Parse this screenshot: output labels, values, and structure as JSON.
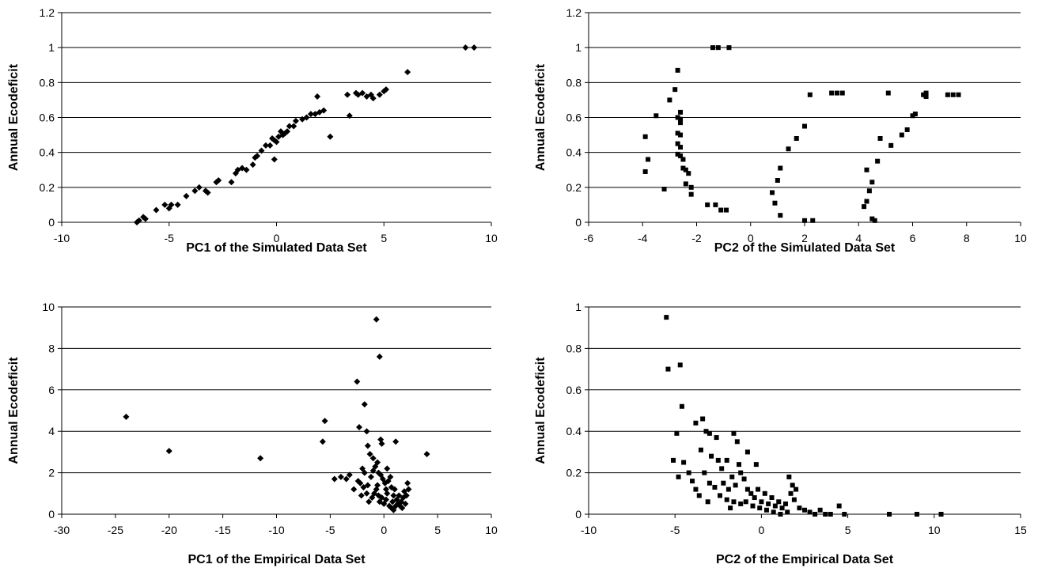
{
  "chart_data": [
    {
      "type": "scatter",
      "marker": "diamond",
      "xlabel": "PC1 of the Simulated Data Set",
      "ylabel": "Annual Ecodeficit",
      "xlim": [
        -10,
        10
      ],
      "ylim": [
        0,
        1.2
      ],
      "xticks": [
        -10,
        -5,
        0,
        5,
        10
      ],
      "yticks": [
        0,
        0.2,
        0.4,
        0.6,
        0.8,
        1,
        1.2
      ],
      "xtick_labels": [
        "-10",
        "-5",
        "0",
        "5",
        "10"
      ],
      "ytick_labels": [
        "0",
        "0.2",
        "0.4",
        "0.6",
        "0.8",
        "1",
        "1.2"
      ],
      "grid": "horizontal",
      "points": [
        [
          -6.5,
          0.0
        ],
        [
          -6.4,
          0.01
        ],
        [
          -6.2,
          0.03
        ],
        [
          -6.1,
          0.02
        ],
        [
          -5.6,
          0.07
        ],
        [
          -5.2,
          0.1
        ],
        [
          -5.0,
          0.08
        ],
        [
          -4.9,
          0.1
        ],
        [
          -4.6,
          0.1
        ],
        [
          -4.2,
          0.15
        ],
        [
          -3.8,
          0.18
        ],
        [
          -3.6,
          0.2
        ],
        [
          -3.3,
          0.18
        ],
        [
          -3.2,
          0.17
        ],
        [
          -2.8,
          0.23
        ],
        [
          -2.7,
          0.24
        ],
        [
          -2.1,
          0.23
        ],
        [
          -1.9,
          0.28
        ],
        [
          -1.8,
          0.3
        ],
        [
          -1.6,
          0.31
        ],
        [
          -1.4,
          0.3
        ],
        [
          -1.1,
          0.33
        ],
        [
          -1.0,
          0.37
        ],
        [
          -0.9,
          0.38
        ],
        [
          -0.7,
          0.41
        ],
        [
          -0.5,
          0.44
        ],
        [
          -0.3,
          0.44
        ],
        [
          -0.1,
          0.47
        ],
        [
          -0.2,
          0.48
        ],
        [
          0.0,
          0.46
        ],
        [
          0.1,
          0.49
        ],
        [
          0.3,
          0.5
        ],
        [
          0.5,
          0.52
        ],
        [
          0.6,
          0.55
        ],
        [
          0.8,
          0.55
        ],
        [
          0.9,
          0.58
        ],
        [
          1.2,
          0.59
        ],
        [
          1.4,
          0.6
        ],
        [
          1.6,
          0.62
        ],
        [
          1.8,
          0.62
        ],
        [
          2.0,
          0.63
        ],
        [
          2.2,
          0.64
        ],
        [
          0.2,
          0.52
        ],
        [
          0.4,
          0.51
        ],
        [
          -0.1,
          0.36
        ],
        [
          1.9,
          0.72
        ],
        [
          2.5,
          0.49
        ],
        [
          3.3,
          0.73
        ],
        [
          3.4,
          0.61
        ],
        [
          3.7,
          0.74
        ],
        [
          3.8,
          0.73
        ],
        [
          4.0,
          0.74
        ],
        [
          4.2,
          0.72
        ],
        [
          4.4,
          0.73
        ],
        [
          4.5,
          0.71
        ],
        [
          4.8,
          0.73
        ],
        [
          5.0,
          0.75
        ],
        [
          5.1,
          0.76
        ],
        [
          6.1,
          0.86
        ],
        [
          8.8,
          1.0
        ],
        [
          9.2,
          1.0
        ]
      ]
    },
    {
      "type": "scatter",
      "marker": "square",
      "xlabel": "PC2 of the Simulated Data Set",
      "ylabel": "Annual Ecodeficit",
      "xlim": [
        -6,
        10
      ],
      "ylim": [
        0,
        1.2
      ],
      "xticks": [
        -6,
        -4,
        -2,
        0,
        2,
        4,
        6,
        8,
        10
      ],
      "yticks": [
        0,
        0.2,
        0.4,
        0.6,
        0.8,
        1,
        1.2
      ],
      "xtick_labels": [
        "-6",
        "-4",
        "-2",
        "0",
        "2",
        "4",
        "6",
        "8",
        "10"
      ],
      "ytick_labels": [
        "0",
        "0.2",
        "0.4",
        "0.6",
        "0.8",
        "1",
        "1.2"
      ],
      "grid": "horizontal",
      "points": [
        [
          -3.9,
          0.49
        ],
        [
          -3.8,
          0.36
        ],
        [
          -3.9,
          0.29
        ],
        [
          -3.5,
          0.61
        ],
        [
          -3.2,
          0.19
        ],
        [
          -3.0,
          0.7
        ],
        [
          -2.8,
          0.76
        ],
        [
          -2.7,
          0.87
        ],
        [
          -2.7,
          0.6
        ],
        [
          -2.6,
          0.63
        ],
        [
          -2.6,
          0.57
        ],
        [
          -2.7,
          0.51
        ],
        [
          -2.6,
          0.5
        ],
        [
          -2.7,
          0.45
        ],
        [
          -2.6,
          0.43
        ],
        [
          -2.6,
          0.38
        ],
        [
          -2.5,
          0.36
        ],
        [
          -2.7,
          0.39
        ],
        [
          -2.5,
          0.31
        ],
        [
          -2.4,
          0.3
        ],
        [
          -2.3,
          0.28
        ],
        [
          -2.2,
          0.2
        ],
        [
          -2.2,
          0.16
        ],
        [
          -2.6,
          0.59
        ],
        [
          -2.4,
          0.22
        ],
        [
          -1.6,
          0.1
        ],
        [
          -1.3,
          0.1
        ],
        [
          -1.1,
          0.07
        ],
        [
          -0.9,
          0.07
        ],
        [
          -1.4,
          1.0
        ],
        [
          -1.2,
          1.0
        ],
        [
          -0.8,
          1.0
        ],
        [
          0.8,
          0.17
        ],
        [
          1.0,
          0.24
        ],
        [
          1.1,
          0.31
        ],
        [
          0.9,
          0.11
        ],
        [
          1.1,
          0.04
        ],
        [
          1.4,
          0.42
        ],
        [
          1.7,
          0.48
        ],
        [
          2.0,
          0.55
        ],
        [
          2.2,
          0.73
        ],
        [
          2.0,
          0.01
        ],
        [
          2.3,
          0.01
        ],
        [
          3.0,
          0.74
        ],
        [
          3.2,
          0.74
        ],
        [
          3.4,
          0.74
        ],
        [
          4.2,
          0.09
        ],
        [
          4.3,
          0.12
        ],
        [
          4.3,
          0.3
        ],
        [
          4.4,
          0.18
        ],
        [
          4.5,
          0.23
        ],
        [
          4.5,
          0.02
        ],
        [
          4.6,
          0.01
        ],
        [
          4.7,
          0.35
        ],
        [
          4.8,
          0.48
        ],
        [
          5.1,
          0.74
        ],
        [
          5.2,
          0.44
        ],
        [
          5.6,
          0.5
        ],
        [
          5.8,
          0.53
        ],
        [
          6.0,
          0.61
        ],
        [
          6.1,
          0.62
        ],
        [
          6.4,
          0.73
        ],
        [
          6.5,
          0.74
        ],
        [
          6.5,
          0.72
        ],
        [
          7.3,
          0.73
        ],
        [
          7.5,
          0.73
        ],
        [
          7.7,
          0.73
        ]
      ]
    },
    {
      "type": "scatter",
      "marker": "diamond",
      "xlabel": "PC1 of the Empirical Data Set",
      "ylabel": "Annual Ecodeficit",
      "xlim": [
        -30,
        10
      ],
      "ylim": [
        0,
        10
      ],
      "xticks": [
        -30,
        -25,
        -20,
        -15,
        -10,
        -5,
        0,
        5,
        10
      ],
      "yticks": [
        0,
        2,
        4,
        6,
        8,
        10
      ],
      "xtick_labels": [
        "-30",
        "-25",
        "-20",
        "-15",
        "-10",
        "-5",
        "0",
        "5",
        "10"
      ],
      "ytick_labels": [
        "0",
        "2",
        "4",
        "6",
        "8",
        "10"
      ],
      "grid": "horizontal",
      "points": [
        [
          -24,
          4.7
        ],
        [
          -20,
          3.05
        ],
        [
          -11.5,
          2.7
        ],
        [
          -5.5,
          4.5
        ],
        [
          -5.7,
          3.5
        ],
        [
          -4.6,
          1.7
        ],
        [
          -4.0,
          1.8
        ],
        [
          -3.5,
          1.7
        ],
        [
          -3.2,
          1.9
        ],
        [
          -2.5,
          6.4
        ],
        [
          -2.3,
          4.2
        ],
        [
          -1.8,
          5.3
        ],
        [
          -1.6,
          4.0
        ],
        [
          -1.5,
          3.3
        ],
        [
          -1.3,
          2.9
        ],
        [
          -1.0,
          2.7
        ],
        [
          -0.7,
          9.4
        ],
        [
          -0.4,
          7.6
        ],
        [
          -0.3,
          3.6
        ],
        [
          -0.2,
          3.4
        ],
        [
          1.1,
          3.5
        ],
        [
          4.0,
          2.9
        ],
        [
          -2.0,
          2.2
        ],
        [
          -1.8,
          2.0
        ],
        [
          -2.2,
          1.5
        ],
        [
          -2.4,
          1.6
        ],
        [
          -2.8,
          1.2
        ],
        [
          -2.1,
          0.9
        ],
        [
          -1.5,
          1.4
        ],
        [
          -1.2,
          1.8
        ],
        [
          -1.0,
          2.1
        ],
        [
          -0.8,
          2.3
        ],
        [
          -0.6,
          2.5
        ],
        [
          -0.5,
          2.0
        ],
        [
          -0.3,
          1.9
        ],
        [
          -0.1,
          1.7
        ],
        [
          0.1,
          1.5
        ],
        [
          0.2,
          1.2
        ],
        [
          0.3,
          1.0
        ],
        [
          0.4,
          1.6
        ],
        [
          0.6,
          1.8
        ],
        [
          0.7,
          1.3
        ],
        [
          0.9,
          0.9
        ],
        [
          1.0,
          1.2
        ],
        [
          1.2,
          0.7
        ],
        [
          1.3,
          0.5
        ],
        [
          1.5,
          0.4
        ],
        [
          1.6,
          0.6
        ],
        [
          1.7,
          0.3
        ],
        [
          2.2,
          1.5
        ],
        [
          2.3,
          1.2
        ],
        [
          2.1,
          0.9
        ],
        [
          1.9,
          1.1
        ],
        [
          -1.1,
          0.8
        ],
        [
          -0.9,
          1.0
        ],
        [
          -0.7,
          1.2
        ],
        [
          -0.5,
          0.9
        ],
        [
          -0.4,
          0.6
        ],
        [
          -0.2,
          0.8
        ],
        [
          0.0,
          0.5
        ],
        [
          0.2,
          0.7
        ],
        [
          0.5,
          0.4
        ],
        [
          0.7,
          0.3
        ],
        [
          0.9,
          0.2
        ],
        [
          1.1,
          0.4
        ],
        [
          -1.4,
          0.6
        ],
        [
          -1.6,
          1.0
        ],
        [
          -1.9,
          1.3
        ],
        [
          0.8,
          0.6
        ],
        [
          1.4,
          0.9
        ],
        [
          -0.6,
          1.4
        ],
        [
          0.3,
          2.2
        ],
        [
          1.8,
          0.8
        ],
        [
          2.0,
          0.5
        ]
      ]
    },
    {
      "type": "scatter",
      "marker": "square",
      "xlabel": "PC2 of the Empirical Data Set",
      "ylabel": "Annual Ecodeficit",
      "xlim": [
        -10,
        15
      ],
      "ylim": [
        0,
        1
      ],
      "xticks": [
        -10,
        -5,
        0,
        5,
        10,
        15
      ],
      "yticks": [
        0,
        0.2,
        0.4,
        0.6,
        0.8,
        1
      ],
      "xtick_labels": [
        "-10",
        "-5",
        "0",
        "5",
        "10",
        "15"
      ],
      "ytick_labels": [
        "0",
        "0.2",
        "0.4",
        "0.6",
        "0.8",
        "1"
      ],
      "grid": "horizontal",
      "points": [
        [
          -5.5,
          0.95
        ],
        [
          -5.4,
          0.7
        ],
        [
          -4.7,
          0.72
        ],
        [
          -4.6,
          0.52
        ],
        [
          -4.9,
          0.39
        ],
        [
          -5.1,
          0.26
        ],
        [
          -4.5,
          0.25
        ],
        [
          -4.2,
          0.2
        ],
        [
          -4.8,
          0.18
        ],
        [
          -3.8,
          0.44
        ],
        [
          -3.4,
          0.46
        ],
        [
          -3.2,
          0.4
        ],
        [
          -3.0,
          0.39
        ],
        [
          -2.6,
          0.37
        ],
        [
          -1.6,
          0.39
        ],
        [
          -1.4,
          0.35
        ],
        [
          -3.5,
          0.31
        ],
        [
          -2.9,
          0.28
        ],
        [
          -2.5,
          0.26
        ],
        [
          -2.3,
          0.22
        ],
        [
          -2.0,
          0.26
        ],
        [
          -1.3,
          0.24
        ],
        [
          -0.8,
          0.3
        ],
        [
          -0.3,
          0.24
        ],
        [
          -3.3,
          0.2
        ],
        [
          -3.0,
          0.15
        ],
        [
          -2.7,
          0.13
        ],
        [
          -2.2,
          0.15
        ],
        [
          -1.9,
          0.12
        ],
        [
          -1.7,
          0.18
        ],
        [
          -1.5,
          0.14
        ],
        [
          -1.2,
          0.2
        ],
        [
          -1.0,
          0.17
        ],
        [
          -0.8,
          0.12
        ],
        [
          -0.6,
          0.1
        ],
        [
          -0.4,
          0.08
        ],
        [
          -0.2,
          0.12
        ],
        [
          0.0,
          0.06
        ],
        [
          0.2,
          0.1
        ],
        [
          0.4,
          0.05
        ],
        [
          0.6,
          0.08
        ],
        [
          0.8,
          0.04
        ],
        [
          1.0,
          0.06
        ],
        [
          1.2,
          0.03
        ],
        [
          1.4,
          0.05
        ],
        [
          1.6,
          0.18
        ],
        [
          1.8,
          0.14
        ],
        [
          2.0,
          0.12
        ],
        [
          1.7,
          0.1
        ],
        [
          1.9,
          0.07
        ],
        [
          2.2,
          0.03
        ],
        [
          2.5,
          0.02
        ],
        [
          2.8,
          0.01
        ],
        [
          3.1,
          0.0
        ],
        [
          3.4,
          0.02
        ],
        [
          3.7,
          0.0
        ],
        [
          4.0,
          0.0
        ],
        [
          4.5,
          0.04
        ],
        [
          4.8,
          0.0
        ],
        [
          -2.4,
          0.09
        ],
        [
          -2.0,
          0.07
        ],
        [
          -1.6,
          0.06
        ],
        [
          -1.2,
          0.05
        ],
        [
          -0.9,
          0.06
        ],
        [
          -0.5,
          0.04
        ],
        [
          -0.1,
          0.03
        ],
        [
          0.3,
          0.02
        ],
        [
          0.7,
          0.01
        ],
        [
          1.1,
          0.0
        ],
        [
          1.5,
          0.01
        ],
        [
          -1.8,
          0.03
        ],
        [
          -3.8,
          0.12
        ],
        [
          -3.6,
          0.09
        ],
        [
          -3.1,
          0.06
        ],
        [
          -4.0,
          0.16
        ],
        [
          7.4,
          0.0
        ],
        [
          9.0,
          0.0
        ],
        [
          10.4,
          0.0
        ]
      ]
    }
  ]
}
